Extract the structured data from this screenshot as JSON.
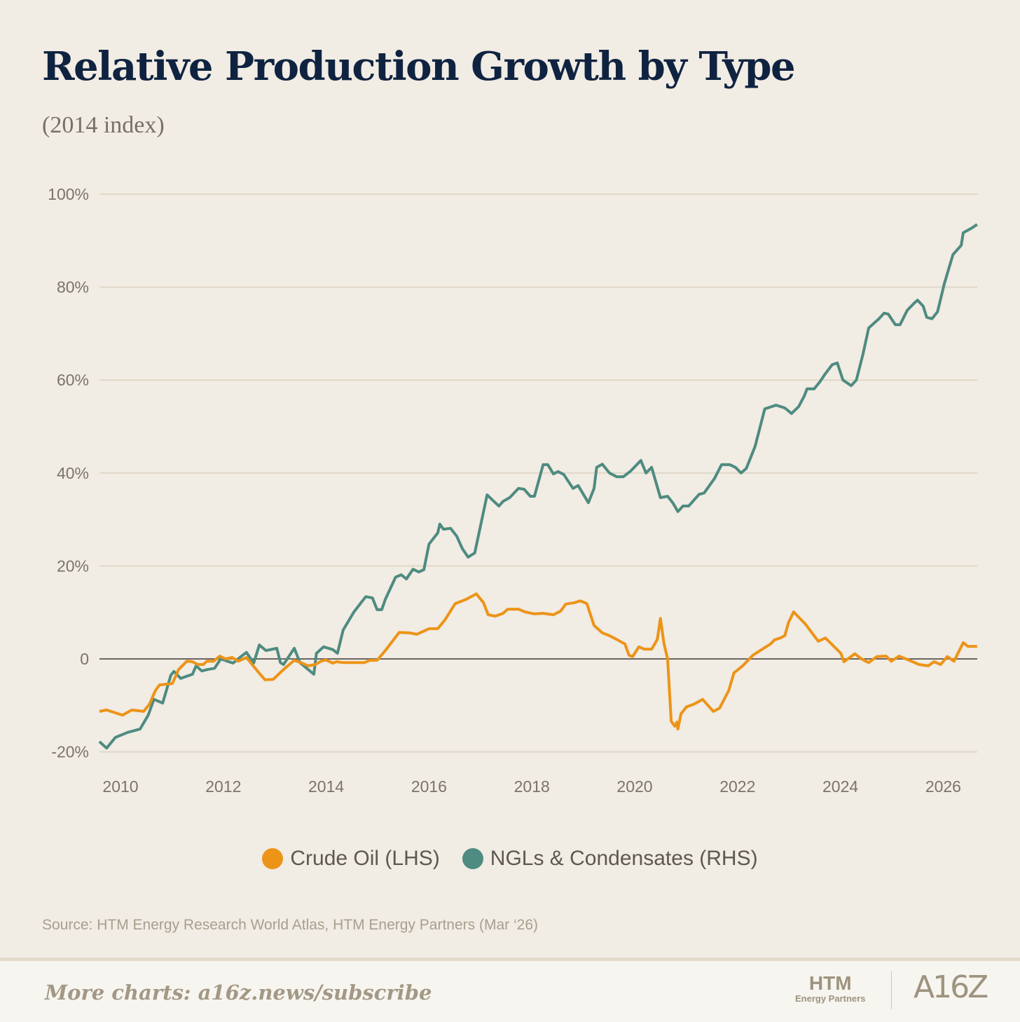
{
  "title": "Relative Production Growth by Type",
  "subtitle": "(2014 index)",
  "source": "Source: HTM Energy Research World Atlas, HTM Energy Partners (Mar ‘26)",
  "footer": {
    "cta": "More charts: a16z.news/subscribe",
    "logo_htm": "HTM",
    "logo_htm_sub": "Energy Partners",
    "logo_a16z": "A16Z"
  },
  "colors": {
    "crude": "#ec9418",
    "ngl": "#4e8b80",
    "grid": "#e0d8c8",
    "zero": "#6b6660"
  },
  "chart_data": {
    "type": "line",
    "title": "Relative Production Growth by Type",
    "subtitle": "(2014 index)",
    "xlabel": "",
    "ylabel": "",
    "xlim": [
      2009.59,
      2026.66
    ],
    "ylim": [
      -20,
      100
    ],
    "yticks": [
      -20,
      0,
      20,
      40,
      60,
      80,
      100
    ],
    "ytick_labels": [
      "-20%",
      "0",
      "20%",
      "40%",
      "60%",
      "80%",
      "100%"
    ],
    "xticks": [
      2010,
      2012,
      2014,
      2016,
      2018,
      2020,
      2022,
      2024,
      2026
    ],
    "xtick_labels": [
      "2010",
      "2012",
      "2014",
      "2016",
      "2018",
      "2020",
      "2022",
      "2024",
      "2026"
    ],
    "grid": true,
    "legend_position": "bottom-center",
    "series": [
      {
        "name": "Crude Oil (LHS)",
        "color": "#ec9418",
        "points": [
          [
            2009.59,
            -11.3
          ],
          [
            2009.73,
            -11.0
          ],
          [
            2010.04,
            -12.1
          ],
          [
            2010.22,
            -11.0
          ],
          [
            2010.45,
            -11.3
          ],
          [
            2010.56,
            -9.8
          ],
          [
            2010.68,
            -6.8
          ],
          [
            2010.76,
            -5.6
          ],
          [
            2011.01,
            -5.3
          ],
          [
            2011.13,
            -2.3
          ],
          [
            2011.29,
            -0.5
          ],
          [
            2011.4,
            -0.6
          ],
          [
            2011.5,
            -1.2
          ],
          [
            2011.61,
            -1.2
          ],
          [
            2011.68,
            -0.5
          ],
          [
            2011.81,
            -0.5
          ],
          [
            2011.93,
            0.6
          ],
          [
            2012.04,
            0
          ],
          [
            2012.17,
            0.3
          ],
          [
            2012.29,
            -0.5
          ],
          [
            2012.45,
            0.3
          ],
          [
            2012.67,
            -2.7
          ],
          [
            2012.81,
            -4.5
          ],
          [
            2012.97,
            -4.4
          ],
          [
            2013.17,
            -2.3
          ],
          [
            2013.38,
            -0.3
          ],
          [
            2013.51,
            -0.8
          ],
          [
            2013.65,
            -1.5
          ],
          [
            2013.79,
            -1.2
          ],
          [
            2013.9,
            -0.5
          ],
          [
            2013.99,
            -0.2
          ],
          [
            2014.13,
            -0.9
          ],
          [
            2014.2,
            -0.6
          ],
          [
            2014.33,
            -0.8
          ],
          [
            2014.74,
            -0.8
          ],
          [
            2014.85,
            -0.3
          ],
          [
            2014.99,
            -0.3
          ],
          [
            2015.15,
            1.8
          ],
          [
            2015.42,
            5.7
          ],
          [
            2015.63,
            5.6
          ],
          [
            2015.76,
            5.3
          ],
          [
            2016.0,
            6.5
          ],
          [
            2016.17,
            6.5
          ],
          [
            2016.31,
            8.4
          ],
          [
            2016.51,
            11.9
          ],
          [
            2016.72,
            12.8
          ],
          [
            2016.92,
            14.0
          ],
          [
            2017.06,
            12.1
          ],
          [
            2017.15,
            9.5
          ],
          [
            2017.29,
            9.2
          ],
          [
            2017.44,
            9.8
          ],
          [
            2017.53,
            10.7
          ],
          [
            2017.74,
            10.7
          ],
          [
            2017.87,
            10.1
          ],
          [
            2018.04,
            9.7
          ],
          [
            2018.22,
            9.8
          ],
          [
            2018.42,
            9.5
          ],
          [
            2018.56,
            10.3
          ],
          [
            2018.66,
            11.8
          ],
          [
            2018.83,
            12.1
          ],
          [
            2018.94,
            12.5
          ],
          [
            2019.07,
            11.9
          ],
          [
            2019.21,
            7.2
          ],
          [
            2019.37,
            5.6
          ],
          [
            2019.51,
            5.0
          ],
          [
            2019.65,
            4.2
          ],
          [
            2019.81,
            3.2
          ],
          [
            2019.89,
            0.8
          ],
          [
            2019.96,
            0.5
          ],
          [
            2020.08,
            2.6
          ],
          [
            2020.19,
            2.1
          ],
          [
            2020.33,
            2.1
          ],
          [
            2020.44,
            4.2
          ],
          [
            2020.5,
            8.7
          ],
          [
            2020.57,
            3.3
          ],
          [
            2020.64,
            0
          ],
          [
            2020.71,
            -13.4
          ],
          [
            2020.78,
            -14.5
          ],
          [
            2020.82,
            -13.6
          ],
          [
            2020.84,
            -15.1
          ],
          [
            2020.9,
            -11.8
          ],
          [
            2021.01,
            -10.3
          ],
          [
            2021.14,
            -9.8
          ],
          [
            2021.32,
            -8.7
          ],
          [
            2021.53,
            -11.3
          ],
          [
            2021.65,
            -10.6
          ],
          [
            2021.83,
            -6.8
          ],
          [
            2021.93,
            -3.0
          ],
          [
            2022.1,
            -1.5
          ],
          [
            2022.3,
            0.8
          ],
          [
            2022.51,
            2.3
          ],
          [
            2022.64,
            3.2
          ],
          [
            2022.72,
            4.1
          ],
          [
            2022.83,
            4.5
          ],
          [
            2022.92,
            5.0
          ],
          [
            2022.99,
            7.8
          ],
          [
            2023.09,
            10.1
          ],
          [
            2023.32,
            7.5
          ],
          [
            2023.57,
            3.8
          ],
          [
            2023.71,
            4.5
          ],
          [
            2024.01,
            1.2
          ],
          [
            2024.07,
            -0.6
          ],
          [
            2024.28,
            1.1
          ],
          [
            2024.41,
            0
          ],
          [
            2024.55,
            -0.8
          ],
          [
            2024.71,
            0.5
          ],
          [
            2024.89,
            0.6
          ],
          [
            2024.99,
            -0.5
          ],
          [
            2025.14,
            0.6
          ],
          [
            2025.34,
            -0.3
          ],
          [
            2025.53,
            -1.2
          ],
          [
            2025.71,
            -1.5
          ],
          [
            2025.82,
            -0.6
          ],
          [
            2025.95,
            -1.2
          ],
          [
            2026.08,
            0.5
          ],
          [
            2026.21,
            -0.5
          ],
          [
            2026.39,
            3.5
          ],
          [
            2026.48,
            2.7
          ],
          [
            2026.66,
            2.7
          ]
        ]
      },
      {
        "name": "NGLs & Condensates (RHS)",
        "color": "#4e8b80",
        "points": [
          [
            2009.59,
            -17.8
          ],
          [
            2009.73,
            -19.2
          ],
          [
            2009.9,
            -16.9
          ],
          [
            2010.14,
            -15.8
          ],
          [
            2010.38,
            -15.1
          ],
          [
            2010.54,
            -12.1
          ],
          [
            2010.65,
            -8.7
          ],
          [
            2010.82,
            -9.5
          ],
          [
            2010.98,
            -3.5
          ],
          [
            2011.04,
            -2.7
          ],
          [
            2011.17,
            -4.2
          ],
          [
            2011.4,
            -3.3
          ],
          [
            2011.47,
            -1.5
          ],
          [
            2011.58,
            -2.6
          ],
          [
            2011.69,
            -2.3
          ],
          [
            2011.83,
            -2.0
          ],
          [
            2011.95,
            0
          ],
          [
            2012.08,
            -0.5
          ],
          [
            2012.19,
            -0.9
          ],
          [
            2012.32,
            0.3
          ],
          [
            2012.45,
            1.4
          ],
          [
            2012.59,
            -0.9
          ],
          [
            2012.7,
            3.0
          ],
          [
            2012.83,
            1.8
          ],
          [
            2013.04,
            2.3
          ],
          [
            2013.11,
            -0.8
          ],
          [
            2013.17,
            -1.2
          ],
          [
            2013.38,
            2.3
          ],
          [
            2013.49,
            -0.8
          ],
          [
            2013.76,
            -3.3
          ],
          [
            2013.81,
            1.2
          ],
          [
            2013.95,
            2.6
          ],
          [
            2014.13,
            2.0
          ],
          [
            2014.22,
            1.2
          ],
          [
            2014.33,
            6.2
          ],
          [
            2014.54,
            10.1
          ],
          [
            2014.77,
            13.4
          ],
          [
            2014.9,
            13.1
          ],
          [
            2014.99,
            10.6
          ],
          [
            2015.08,
            10.6
          ],
          [
            2015.15,
            12.8
          ],
          [
            2015.35,
            17.6
          ],
          [
            2015.46,
            18.1
          ],
          [
            2015.56,
            17.2
          ],
          [
            2015.69,
            19.3
          ],
          [
            2015.8,
            18.7
          ],
          [
            2015.9,
            19.2
          ],
          [
            2016.0,
            24.7
          ],
          [
            2016.17,
            27.1
          ],
          [
            2016.21,
            29.0
          ],
          [
            2016.28,
            27.9
          ],
          [
            2016.42,
            28.1
          ],
          [
            2016.54,
            26.4
          ],
          [
            2016.65,
            23.7
          ],
          [
            2016.76,
            21.9
          ],
          [
            2016.89,
            22.8
          ],
          [
            2017.13,
            35.3
          ],
          [
            2017.26,
            33.9
          ],
          [
            2017.36,
            32.9
          ],
          [
            2017.44,
            33.9
          ],
          [
            2017.57,
            34.7
          ],
          [
            2017.74,
            36.7
          ],
          [
            2017.85,
            36.5
          ],
          [
            2017.97,
            35.0
          ],
          [
            2018.05,
            35.0
          ],
          [
            2018.22,
            41.8
          ],
          [
            2018.31,
            41.8
          ],
          [
            2018.42,
            39.8
          ],
          [
            2018.51,
            40.3
          ],
          [
            2018.62,
            39.7
          ],
          [
            2018.8,
            36.7
          ],
          [
            2018.9,
            37.3
          ],
          [
            2019.1,
            33.6
          ],
          [
            2019.21,
            36.7
          ],
          [
            2019.26,
            41.2
          ],
          [
            2019.37,
            41.9
          ],
          [
            2019.51,
            40.0
          ],
          [
            2019.65,
            39.2
          ],
          [
            2019.78,
            39.2
          ],
          [
            2019.92,
            40.4
          ],
          [
            2020.12,
            42.7
          ],
          [
            2020.22,
            40.0
          ],
          [
            2020.33,
            41.2
          ],
          [
            2020.5,
            34.7
          ],
          [
            2020.64,
            35.0
          ],
          [
            2020.74,
            33.6
          ],
          [
            2020.84,
            31.7
          ],
          [
            2020.94,
            32.9
          ],
          [
            2021.05,
            32.9
          ],
          [
            2021.25,
            35.4
          ],
          [
            2021.35,
            35.7
          ],
          [
            2021.55,
            38.8
          ],
          [
            2021.69,
            41.8
          ],
          [
            2021.85,
            41.8
          ],
          [
            2021.96,
            41.2
          ],
          [
            2022.07,
            40.0
          ],
          [
            2022.17,
            41.0
          ],
          [
            2022.34,
            45.7
          ],
          [
            2022.53,
            53.8
          ],
          [
            2022.75,
            54.6
          ],
          [
            2022.92,
            54.0
          ],
          [
            2023.05,
            52.8
          ],
          [
            2023.19,
            54.3
          ],
          [
            2023.3,
            56.6
          ],
          [
            2023.35,
            58.1
          ],
          [
            2023.49,
            58.1
          ],
          [
            2023.6,
            59.6
          ],
          [
            2023.71,
            61.4
          ],
          [
            2023.84,
            63.3
          ],
          [
            2023.94,
            63.7
          ],
          [
            2024.05,
            60.0
          ],
          [
            2024.21,
            58.8
          ],
          [
            2024.31,
            60.0
          ],
          [
            2024.44,
            65.6
          ],
          [
            2024.55,
            71.2
          ],
          [
            2024.75,
            73.2
          ],
          [
            2024.85,
            74.4
          ],
          [
            2024.93,
            74.2
          ],
          [
            2025.07,
            71.9
          ],
          [
            2025.16,
            71.9
          ],
          [
            2025.3,
            75.0
          ],
          [
            2025.44,
            76.6
          ],
          [
            2025.5,
            77.2
          ],
          [
            2025.61,
            75.9
          ],
          [
            2025.68,
            73.5
          ],
          [
            2025.78,
            73.2
          ],
          [
            2025.89,
            74.7
          ],
          [
            2026.02,
            80.7
          ],
          [
            2026.19,
            87.0
          ],
          [
            2026.35,
            89.0
          ],
          [
            2026.39,
            91.7
          ],
          [
            2026.57,
            92.8
          ],
          [
            2026.66,
            93.5
          ]
        ]
      }
    ]
  }
}
